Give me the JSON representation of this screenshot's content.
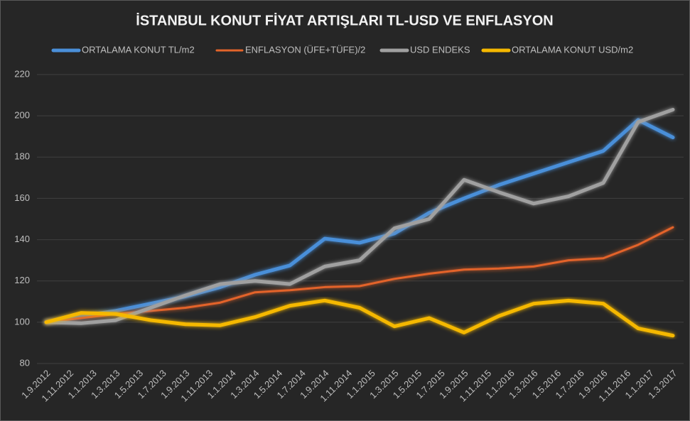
{
  "chart_data": {
    "type": "line",
    "title": "İSTANBUL KONUT FİYAT ARTIŞLARI TL-USD VE ENFLASYON",
    "xticks": [
      "1.9.2012",
      "1.11.2012",
      "1.1.2013",
      "1.3.2013",
      "1.5.2013",
      "1.7.2013",
      "1.9.2013",
      "1.11.2013",
      "1.1.2014",
      "1.3.2014",
      "1.5.2014",
      "1.7.2014",
      "1.9.2014",
      "1.11.2014",
      "1.1.2015",
      "1.3.2015",
      "1.5.2015",
      "1.7.2015",
      "1.9.2015",
      "1.11.2015",
      "1.1.2016",
      "1.3.2016",
      "1.5.2016",
      "1.7.2016",
      "1.9.2016",
      "1.11.2016",
      "1.1.2017",
      "1.3.2017"
    ],
    "ylim": [
      80,
      220
    ],
    "yticks": [
      80,
      100,
      120,
      140,
      160,
      180,
      200,
      220
    ],
    "grid": true,
    "series": [
      {
        "name": "ORTALAMA KONUT TL/m2",
        "color": "#4a8fd9",
        "values": [
          100,
          103,
          105.5,
          109,
          112.5,
          117,
          123,
          127.5,
          140.5,
          138.5,
          143,
          153,
          160,
          166.5,
          172,
          177.5,
          183,
          198,
          189.5
        ]
      },
      {
        "name": "ENFLASYON (ÜFE+TÜFE)/2",
        "color": "#e3642a",
        "values": [
          100,
          102,
          104,
          105.5,
          107,
          109.5,
          114.5,
          115.5,
          117,
          117.5,
          121,
          123.5,
          125.5,
          126,
          127,
          130,
          131,
          137.5,
          146
        ]
      },
      {
        "name": "USD ENDEKS",
        "color": "#a0a0a0",
        "values": [
          100,
          99.5,
          101,
          107,
          113,
          118.5,
          120,
          118.5,
          127,
          130,
          145.5,
          150,
          169,
          163,
          157.5,
          161,
          167.5,
          197,
          203
        ]
      },
      {
        "name": "ORTALAMA KONUT USD/m2",
        "color": "#f5b800",
        "values": [
          100,
          104.5,
          104,
          101,
          99,
          98.5,
          102.5,
          108,
          110.5,
          107,
          98,
          102,
          95,
          103,
          109,
          110.5,
          109,
          97,
          93.5
        ]
      }
    ]
  }
}
